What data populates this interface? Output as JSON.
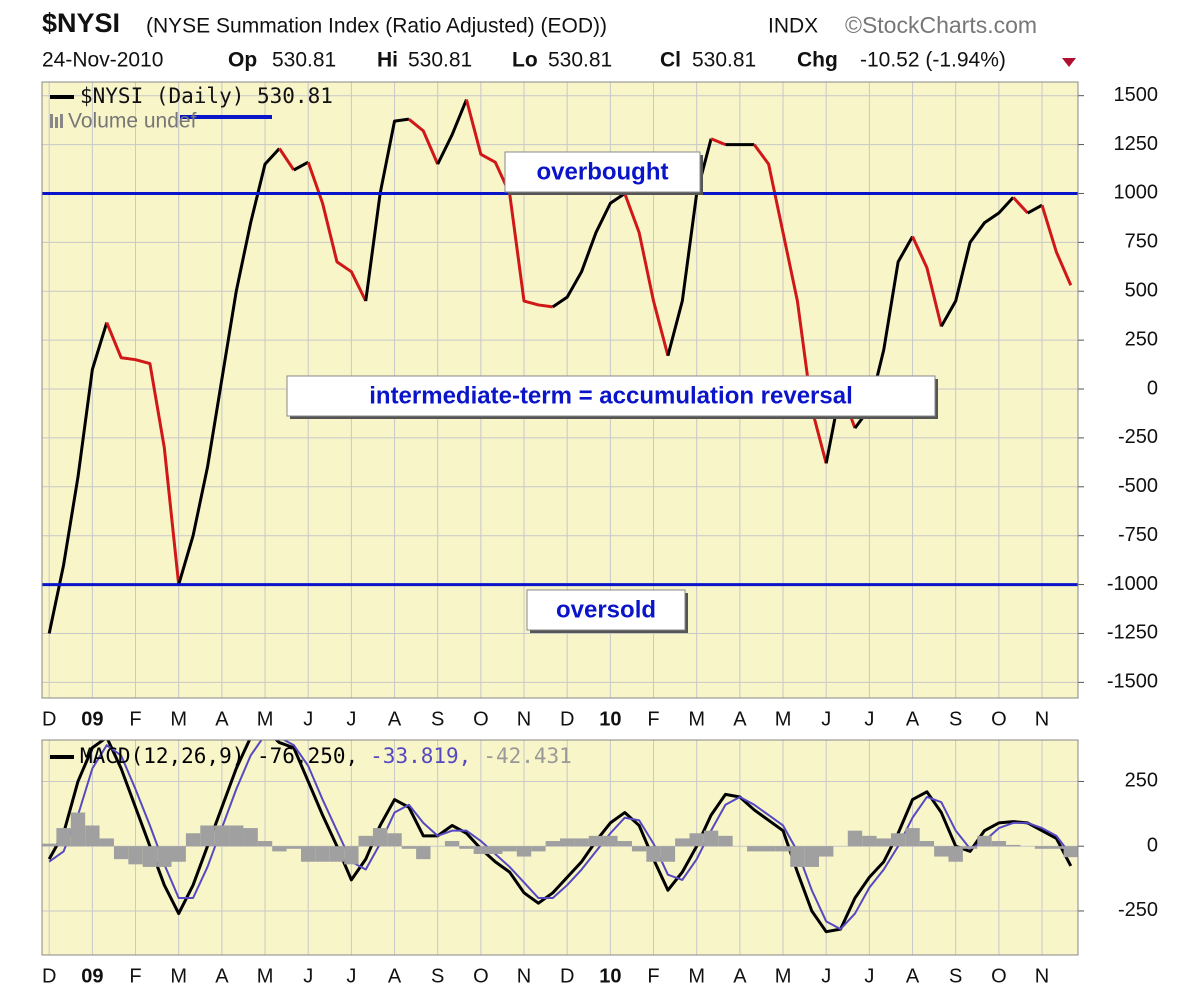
{
  "chart_data": [
    {
      "type": "line",
      "title": "$NYSI",
      "subtitle": "(NYSE Summation Index (Ratio Adjusted) (EOD))",
      "exchange": "INDX",
      "source": "©StockCharts.com",
      "date": "24-Nov-2010",
      "quote": [
        {
          "label": "Op",
          "value": 530.81
        },
        {
          "label": "Hi",
          "value": 530.81
        },
        {
          "label": "Lo",
          "value": 530.81
        },
        {
          "label": "Cl",
          "value": 530.81
        }
      ],
      "change_label": "Chg",
      "change": "-10.52 (-1.94%)",
      "categories": [
        "D",
        null,
        null,
        "09",
        null,
        null,
        "F",
        null,
        null,
        "M",
        null,
        null,
        "A",
        null,
        null,
        "M",
        null,
        null,
        "J",
        null,
        null,
        "J",
        null,
        null,
        "A",
        null,
        null,
        "S",
        null,
        null,
        "O",
        null,
        null,
        "N",
        null,
        null,
        "D",
        null,
        null,
        "10",
        null,
        null,
        "F",
        null,
        null,
        "M",
        null,
        null,
        "A",
        null,
        null,
        "M",
        null,
        null,
        "J",
        null,
        null,
        "J",
        null,
        null,
        "A",
        null,
        null,
        "S",
        null,
        null,
        "O",
        null,
        null,
        "N",
        null,
        null
      ],
      "series": [
        {
          "name": "$NYSI (Daily) 530.81",
          "up_color": "#000000",
          "down_color": "#d01818",
          "values": [
            -1250,
            -900,
            -450,
            100,
            340,
            160,
            150,
            130,
            -300,
            -1000,
            -750,
            -400,
            50,
            500,
            850,
            1150,
            1230,
            1120,
            1160,
            950,
            650,
            600,
            450,
            1000,
            1370,
            1380,
            1320,
            1150,
            1300,
            1480,
            1200,
            1160,
            1000,
            450,
            430,
            420,
            470,
            600,
            800,
            950,
            1000,
            800,
            450,
            170,
            450,
            1000,
            1280,
            1250,
            1250,
            1250,
            1150,
            800,
            450,
            -100,
            -380,
            0,
            -200,
            -100,
            200,
            650,
            780,
            620,
            320,
            450,
            750,
            850,
            900,
            980,
            900,
            940,
            700,
            530.81
          ]
        }
      ],
      "overlay_label": "Volume undef",
      "hlines": [
        1000,
        -1000
      ],
      "hline_color": "#0a14c8",
      "annotations": [
        "overbought",
        "intermediate-term = accumulation reversal",
        "oversold"
      ],
      "ylim": [
        -1580,
        1570
      ],
      "yticks": [
        1500,
        1250,
        1000,
        750,
        500,
        250,
        0,
        -250,
        -500,
        -750,
        -1000,
        -1250,
        -1500
      ],
      "grid": true,
      "background": "#f8f5c9"
    },
    {
      "type": "line",
      "categories": [
        "D",
        null,
        null,
        "09",
        null,
        null,
        "F",
        null,
        null,
        "M",
        null,
        null,
        "A",
        null,
        null,
        "M",
        null,
        null,
        "J",
        null,
        null,
        "J",
        null,
        null,
        "A",
        null,
        null,
        "S",
        null,
        null,
        "O",
        null,
        null,
        "N",
        null,
        null,
        "D",
        null,
        null,
        "10",
        null,
        null,
        "F",
        null,
        null,
        "M",
        null,
        null,
        "A",
        null,
        null,
        "M",
        null,
        null,
        "J",
        null,
        null,
        "J",
        null,
        null,
        "A",
        null,
        null,
        "S",
        null,
        null,
        "O",
        null,
        null,
        "N",
        null,
        null
      ],
      "series": [
        {
          "name": "MACD(12,26,9) -76.250,",
          "color": "#000000",
          "style": "line",
          "values": [
            -50,
            50,
            250,
            380,
            420,
            300,
            150,
            0,
            -150,
            -260,
            -150,
            0,
            150,
            300,
            420,
            450,
            400,
            380,
            250,
            120,
            0,
            -130,
            -50,
            80,
            180,
            150,
            40,
            40,
            80,
            50,
            -10,
            -60,
            -100,
            -180,
            -220,
            -180,
            -120,
            -60,
            20,
            90,
            130,
            80,
            -50,
            -170,
            -100,
            0,
            120,
            200,
            190,
            140,
            100,
            60,
            -100,
            -250,
            -330,
            -320,
            -200,
            -120,
            -60,
            50,
            180,
            210,
            130,
            0,
            -20,
            60,
            90,
            95,
            90,
            60,
            30,
            -76.25
          ]
        },
        {
          "name": "-33.819,",
          "color": "#5548c0",
          "style": "line",
          "values": [
            -60,
            -20,
            120,
            300,
            390,
            350,
            220,
            80,
            -70,
            -200,
            -200,
            -80,
            70,
            220,
            350,
            430,
            420,
            390,
            310,
            180,
            60,
            -60,
            -90,
            10,
            130,
            160,
            90,
            40,
            60,
            60,
            20,
            -30,
            -80,
            -140,
            -200,
            -200,
            -150,
            -90,
            -20,
            50,
            110,
            100,
            10,
            -110,
            -130,
            -50,
            60,
            160,
            190,
            160,
            120,
            80,
            -20,
            -170,
            -290,
            -320,
            -260,
            -160,
            -90,
            0,
            110,
            190,
            170,
            60,
            -10,
            20,
            70,
            90,
            90,
            70,
            40,
            -33.819
          ]
        },
        {
          "name": "-42.431",
          "color": "#a0a0a0",
          "style": "histogram",
          "values": [
            10,
            70,
            130,
            80,
            30,
            -50,
            -70,
            -80,
            -80,
            -60,
            50,
            80,
            80,
            80,
            70,
            20,
            -20,
            -10,
            -60,
            -60,
            -60,
            -70,
            40,
            70,
            50,
            -10,
            -50,
            0,
            20,
            -10,
            -30,
            -30,
            -20,
            -40,
            -20,
            20,
            30,
            30,
            40,
            40,
            20,
            -20,
            -60,
            -60,
            30,
            50,
            60,
            40,
            0,
            -20,
            -20,
            -20,
            -80,
            -80,
            -40,
            0,
            60,
            40,
            30,
            50,
            70,
            20,
            -40,
            -60,
            -10,
            40,
            20,
            5,
            0,
            -10,
            -10,
            -42.431
          ]
        }
      ],
      "ylim": [
        -420,
        410
      ],
      "yticks": [
        250,
        0,
        -250
      ],
      "grid": true,
      "background": "#f8f5c9"
    }
  ]
}
